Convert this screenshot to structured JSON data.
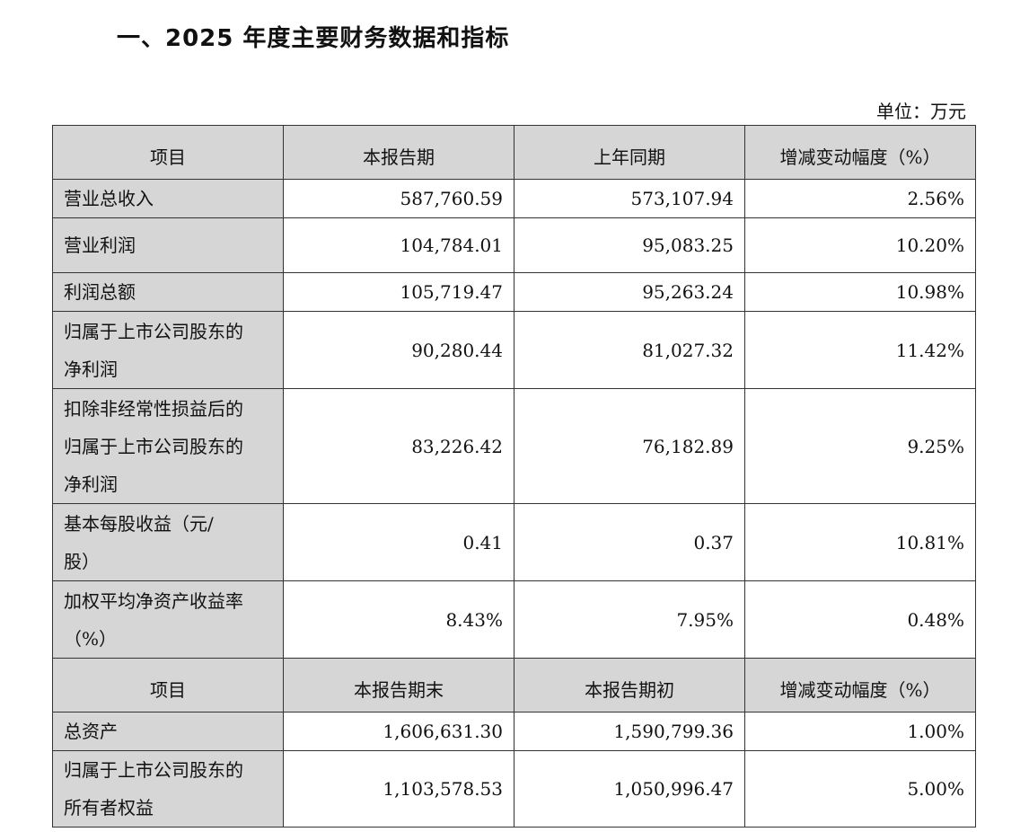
{
  "title": "一、2025 年度主要财务数据和指标",
  "unit": "单位：万元",
  "section1": {
    "headers": [
      "项目",
      "本报告期",
      "上年同期",
      "增减变动幅度（%）"
    ],
    "rows": [
      {
        "label": [
          "营业总收入"
        ],
        "current": "587,760.59",
        "previous": "573,107.94",
        "change": "2.56%"
      },
      {
        "label": [
          "营业利润"
        ],
        "current": "104,784.01",
        "previous": "95,083.25",
        "change": "10.20%"
      },
      {
        "label": [
          "利润总额"
        ],
        "current": "105,719.47",
        "previous": "95,263.24",
        "change": "10.98%"
      },
      {
        "label": [
          "归属于上市公司股东的",
          "净利润"
        ],
        "current": "90,280.44",
        "previous": "81,027.32",
        "change": "11.42%"
      },
      {
        "label": [
          "扣除非经常性损益后的",
          "归属于上市公司股东的",
          "净利润"
        ],
        "current": "83,226.42",
        "previous": "76,182.89",
        "change": "9.25%"
      },
      {
        "label": [
          "基本每股收益（元/",
          "股）"
        ],
        "current": "0.41",
        "previous": "0.37",
        "change": "10.81%"
      },
      {
        "label": [
          "加权平均净资产收益率",
          "（%）"
        ],
        "current": "8.43%",
        "previous": "7.95%",
        "change": "0.48%"
      }
    ]
  },
  "section2": {
    "headers": [
      "项目",
      "本报告期末",
      "本报告期初",
      "增减变动幅度（%）"
    ],
    "rows": [
      {
        "label": [
          "总资产"
        ],
        "current": "1,606,631.30",
        "previous": "1,590,799.36",
        "change": "1.00%"
      },
      {
        "label": [
          "归属于上市公司股东的",
          "所有者权益"
        ],
        "current": "1,103,578.53",
        "previous": "1,050,996.47",
        "change": "5.00%"
      }
    ]
  }
}
